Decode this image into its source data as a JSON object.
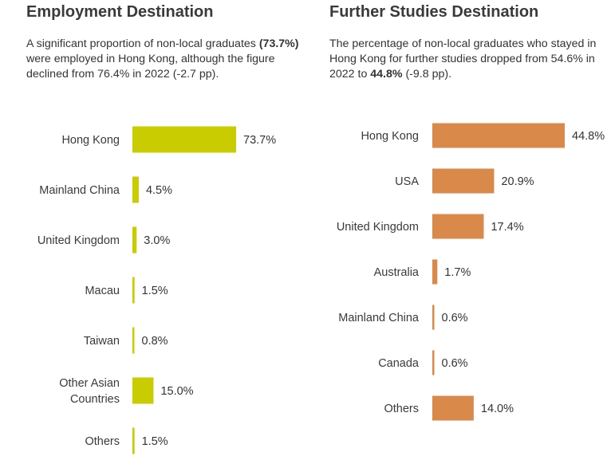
{
  "panels": [
    {
      "title": "Employment Destination",
      "description_parts": [
        {
          "text": "A significant proportion of non-local graduates ",
          "bold": false
        },
        {
          "text": "(73.7%)",
          "bold": true
        },
        {
          "text": " were employed in Hong Kong, although the figure declined from 76.4% in 2022 (-2.7 pp).",
          "bold": false
        }
      ]
    },
    {
      "title": "Further Studies Destination",
      "description_parts": [
        {
          "text": "The percentage of non-local graduates who stayed in Hong Kong for further studies dropped from 54.6% in 2022 to ",
          "bold": false
        },
        {
          "text": "44.8%",
          "bold": true
        },
        {
          "text": " (-9.8 pp).",
          "bold": false
        }
      ]
    }
  ],
  "chart_data": [
    {
      "type": "bar",
      "orientation": "horizontal",
      "title": "Employment Destination",
      "color": "#c8cc00",
      "unit": "%",
      "categories": [
        "Hong Kong",
        "Mainland China",
        "United Kingdom",
        "Macau",
        "Taiwan",
        "Other Asian Countries",
        "Others"
      ],
      "category_lines": [
        [
          "Hong Kong"
        ],
        [
          "Mainland China"
        ],
        [
          "United Kingdom"
        ],
        [
          "Macau"
        ],
        [
          "Taiwan"
        ],
        [
          "Other Asian",
          "Countries"
        ],
        [
          "Others"
        ]
      ],
      "values": [
        73.7,
        4.5,
        3.0,
        1.5,
        0.8,
        15.0,
        1.5
      ],
      "value_labels": [
        "73.7%",
        "4.5%",
        "3.0%",
        "1.5%",
        "0.8%",
        "15.0%",
        "1.5%"
      ],
      "axis_visible": false,
      "grid": false
    },
    {
      "type": "bar",
      "orientation": "horizontal",
      "title": "Further Studies Destination",
      "color": "#d9894a",
      "unit": "%",
      "categories": [
        "Hong Kong",
        "USA",
        "United Kingdom",
        "Australia",
        "Mainland China",
        "Canada",
        "Others"
      ],
      "category_lines": [
        [
          "Hong Kong"
        ],
        [
          "USA"
        ],
        [
          "United Kingdom"
        ],
        [
          "Australia"
        ],
        [
          "Mainland China"
        ],
        [
          "Canada"
        ],
        [
          "Others"
        ]
      ],
      "values": [
        44.8,
        20.9,
        17.4,
        1.7,
        0.6,
        0.6,
        14.0
      ],
      "value_labels": [
        "44.8%",
        "20.9%",
        "17.4%",
        "1.7%",
        "0.6%",
        "0.6%",
        "14.0%"
      ],
      "axis_visible": false,
      "grid": false
    }
  ]
}
